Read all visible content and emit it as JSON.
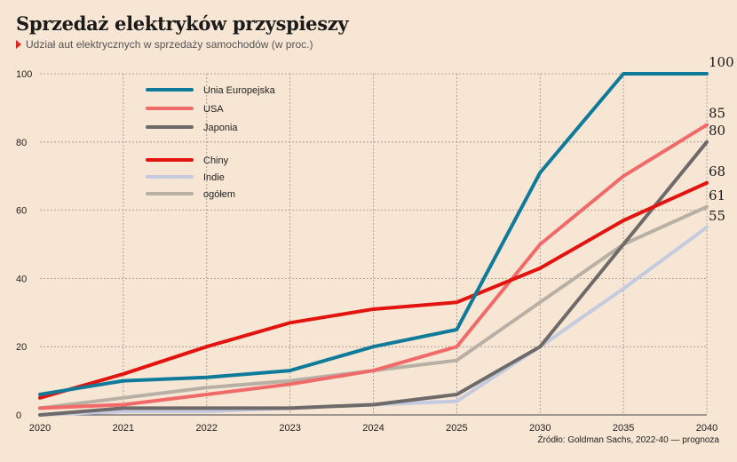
{
  "title": "Sprzedaż elektryków przyspieszy",
  "subtitle": "Udział aut elektrycznych w sprzedaży samochodów (w proc.)",
  "source": "Źródło: Goldman Sachs, 2022-40 — prognoza",
  "chart_data": {
    "type": "line",
    "x": [
      2020,
      2021,
      2022,
      2023,
      2024,
      2025,
      2030,
      2035,
      2040
    ],
    "ylim": [
      0,
      100
    ],
    "yticks": [
      0,
      20,
      40,
      60,
      80,
      100
    ],
    "grid": true,
    "legend_placement": "top-left",
    "series": [
      {
        "name": "Unia Europejska",
        "color": "#0f7a99",
        "values": [
          6,
          10,
          11,
          13,
          20,
          25,
          71,
          100,
          100
        ],
        "end_label": "100"
      },
      {
        "name": "USA",
        "color": "#f06a6a",
        "values": [
          2,
          3,
          6,
          9,
          13,
          20,
          50,
          70,
          85
        ],
        "end_label": "85"
      },
      {
        "name": "Japonia",
        "color": "#6f6a6a",
        "values": [
          0,
          2,
          2,
          2,
          3,
          6,
          20,
          50,
          80
        ],
        "end_label": "80"
      },
      {
        "name": "Chiny",
        "color": "#e3140f",
        "values": [
          5,
          12,
          20,
          27,
          31,
          33,
          43,
          57,
          68
        ],
        "end_label": "68"
      },
      {
        "name": "Indie",
        "color": "#c4cbe0",
        "values": [
          0,
          1,
          1,
          2,
          3,
          4,
          20,
          37,
          55
        ],
        "end_label": "55"
      },
      {
        "name": "ogółem",
        "color": "#b8b0a5",
        "values": [
          2,
          5,
          8,
          10,
          13,
          16,
          33,
          50,
          61
        ],
        "end_label": "61"
      }
    ]
  }
}
